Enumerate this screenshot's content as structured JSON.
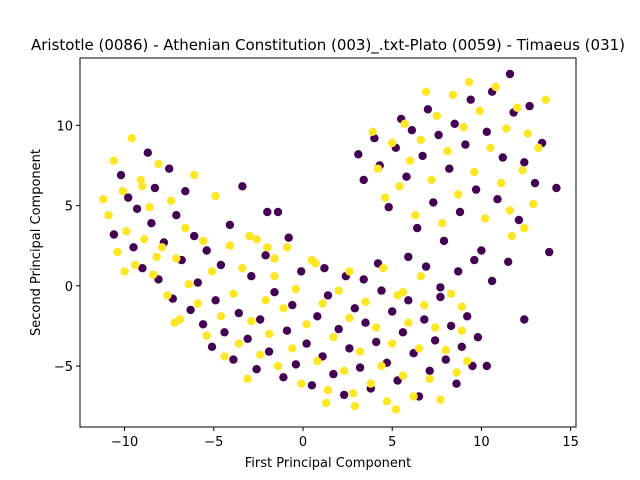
{
  "chart_data": {
    "type": "scatter",
    "title": "Aristotle (0086) - Athenian Constitution (003)_.txt-Plato (0059) - Timaeus (031)",
    "xlabel": "First Principal Component",
    "ylabel": "Second Principal Component",
    "xlim": [
      -12.5,
      15.3
    ],
    "ylim": [
      -8.8,
      14.2
    ],
    "xticks": [
      -10,
      -5,
      0,
      5,
      10,
      15
    ],
    "yticks": [
      -5,
      0,
      5,
      10
    ],
    "grid": false,
    "legend": "none",
    "colors": {
      "class_0": "#440154",
      "class_1": "#fde725"
    },
    "series": [
      {
        "points": [
          [
            -10.6,
            3.2
          ],
          [
            -10.2,
            6.9
          ],
          [
            -9.8,
            5.5
          ],
          [
            -9.5,
            2.4
          ],
          [
            -9.3,
            4.8
          ],
          [
            -9.0,
            1.1
          ],
          [
            -8.7,
            8.3
          ],
          [
            -8.5,
            3.9
          ],
          [
            -8.3,
            6.1
          ],
          [
            -8.1,
            0.4
          ],
          [
            -7.8,
            2.7
          ],
          [
            -7.5,
            7.3
          ],
          [
            -7.3,
            -0.8
          ],
          [
            -7.1,
            4.4
          ],
          [
            -6.8,
            1.6
          ],
          [
            -6.6,
            5.9
          ],
          [
            -6.3,
            -1.5
          ],
          [
            -6.1,
            3.1
          ],
          [
            -5.9,
            0.2
          ],
          [
            -5.6,
            -2.4
          ],
          [
            -5.4,
            2.2
          ],
          [
            -5.1,
            -3.8
          ],
          [
            -4.9,
            -0.9
          ],
          [
            -4.6,
            1.3
          ],
          [
            -4.4,
            -2.9
          ],
          [
            -4.1,
            3.8
          ],
          [
            -3.9,
            -4.6
          ],
          [
            -3.6,
            -1.7
          ],
          [
            -3.4,
            6.2
          ],
          [
            -3.1,
            -3.3
          ],
          [
            -2.9,
            0.6
          ],
          [
            -2.6,
            -5.2
          ],
          [
            -2.4,
            -2.1
          ],
          [
            -2.1,
            1.9
          ],
          [
            -1.9,
            -4.1
          ],
          [
            -1.6,
            -0.4
          ],
          [
            -1.4,
            4.6
          ],
          [
            -1.1,
            -5.7
          ],
          [
            -0.9,
            -2.8
          ],
          [
            -0.6,
            -1.2
          ],
          [
            -0.4,
            -4.9
          ],
          [
            -0.1,
            0.9
          ],
          [
            0.2,
            -3.6
          ],
          [
            0.5,
            -6.2
          ],
          [
            0.8,
            -1.9
          ],
          [
            1.1,
            -4.4
          ],
          [
            1.4,
            -0.6
          ],
          [
            1.7,
            -5.5
          ],
          [
            2.0,
            -2.7
          ],
          [
            2.3,
            -6.8
          ],
          [
            2.6,
            -3.9
          ],
          [
            2.9,
            -1.4
          ],
          [
            3.2,
            -5.1
          ],
          [
            3.5,
            -2.3
          ],
          [
            3.8,
            -6.4
          ],
          [
            4.1,
            -3.5
          ],
          [
            4.4,
            -0.3
          ],
          [
            4.7,
            -4.8
          ],
          [
            5.0,
            -1.6
          ],
          [
            5.3,
            -5.9
          ],
          [
            5.6,
            -2.9
          ],
          [
            5.9,
            -0.9
          ],
          [
            6.2,
            -4.2
          ],
          [
            6.5,
            -6.9
          ],
          [
            6.8,
            -2.1
          ],
          [
            7.1,
            -5.3
          ],
          [
            7.4,
            -3.4
          ],
          [
            7.7,
            -0.7
          ],
          [
            8.0,
            -4.6
          ],
          [
            8.3,
            -2.5
          ],
          [
            8.6,
            -6.1
          ],
          [
            8.9,
            -3.8
          ],
          [
            9.2,
            -1.9
          ],
          [
            9.5,
            -5.0
          ],
          [
            9.8,
            -3.2
          ],
          [
            10.3,
            -5.0
          ],
          [
            12.4,
            -2.1
          ],
          [
            3.1,
            8.2
          ],
          [
            3.4,
            6.6
          ],
          [
            4.0,
            9.2
          ],
          [
            4.3,
            7.5
          ],
          [
            4.8,
            4.9
          ],
          [
            5.2,
            8.6
          ],
          [
            5.5,
            10.4
          ],
          [
            5.8,
            6.8
          ],
          [
            6.1,
            9.7
          ],
          [
            6.4,
            3.6
          ],
          [
            6.7,
            8.1
          ],
          [
            7.0,
            11.0
          ],
          [
            7.3,
            5.2
          ],
          [
            7.6,
            9.4
          ],
          [
            7.9,
            2.8
          ],
          [
            8.2,
            7.3
          ],
          [
            8.5,
            10.1
          ],
          [
            8.8,
            4.6
          ],
          [
            9.1,
            8.8
          ],
          [
            9.4,
            11.6
          ],
          [
            9.7,
            6.0
          ],
          [
            10.0,
            2.2
          ],
          [
            10.3,
            9.6
          ],
          [
            10.6,
            12.1
          ],
          [
            10.9,
            5.4
          ],
          [
            11.2,
            8.0
          ],
          [
            11.5,
            1.5
          ],
          [
            11.8,
            10.8
          ],
          [
            12.1,
            4.1
          ],
          [
            12.4,
            7.7
          ],
          [
            12.7,
            11.2
          ],
          [
            13.0,
            6.4
          ],
          [
            13.4,
            8.9
          ],
          [
            13.8,
            2.1
          ],
          [
            14.2,
            6.1
          ],
          [
            11.6,
            13.2
          ],
          [
            1.2,
            1.1
          ],
          [
            2.4,
            0.6
          ],
          [
            3.4,
            0.4
          ],
          [
            4.2,
            1.4
          ],
          [
            5.9,
            1.8
          ],
          [
            6.9,
            1.2
          ],
          [
            9.6,
            1.6
          ],
          [
            10.6,
            0.3
          ],
          [
            7.7,
            -0.1
          ],
          [
            8.7,
            0.9
          ],
          [
            -2.0,
            4.6
          ],
          [
            -0.8,
            3.0
          ]
        ]
      },
      {
        "points": [
          [
            -11.2,
            5.4
          ],
          [
            -10.9,
            4.4
          ],
          [
            -10.6,
            7.8
          ],
          [
            -10.4,
            2.1
          ],
          [
            -10.1,
            5.9
          ],
          [
            -9.9,
            3.4
          ],
          [
            -9.6,
            9.2
          ],
          [
            -9.4,
            1.3
          ],
          [
            -9.1,
            6.6
          ],
          [
            -8.9,
            2.9
          ],
          [
            -8.6,
            4.9
          ],
          [
            -8.4,
            0.7
          ],
          [
            -8.1,
            7.6
          ],
          [
            -7.9,
            2.4
          ],
          [
            -7.6,
            -0.6
          ],
          [
            -7.4,
            5.3
          ],
          [
            -7.1,
            1.7
          ],
          [
            -6.9,
            -2.1
          ],
          [
            -6.6,
            3.6
          ],
          [
            -6.4,
            0.1
          ],
          [
            -6.1,
            6.9
          ],
          [
            -5.9,
            -1.1
          ],
          [
            -5.6,
            2.8
          ],
          [
            -5.4,
            -3.1
          ],
          [
            -5.1,
            0.9
          ],
          [
            -4.9,
            5.6
          ],
          [
            -4.6,
            -1.9
          ],
          [
            -4.4,
            -4.4
          ],
          [
            -4.1,
            2.5
          ],
          [
            -3.9,
            -0.5
          ],
          [
            -3.6,
            -3.6
          ],
          [
            -3.4,
            1.1
          ],
          [
            -3.1,
            -5.8
          ],
          [
            -2.9,
            -2.2
          ],
          [
            -2.6,
            2.9
          ],
          [
            -2.4,
            -4.3
          ],
          [
            -2.1,
            -0.9
          ],
          [
            -1.9,
            -3.0
          ],
          [
            -1.6,
            1.7
          ],
          [
            -1.4,
            -5.0
          ],
          [
            -1.1,
            -1.4
          ],
          [
            -0.9,
            2.4
          ],
          [
            -0.6,
            -3.9
          ],
          [
            -0.4,
            -0.2
          ],
          [
            -0.1,
            -6.1
          ],
          [
            0.2,
            -2.4
          ],
          [
            0.5,
            1.6
          ],
          [
            0.8,
            -4.7
          ],
          [
            1.1,
            -1.1
          ],
          [
            1.4,
            -6.5
          ],
          [
            1.7,
            -3.2
          ],
          [
            2.0,
            -0.3
          ],
          [
            2.3,
            -5.3
          ],
          [
            2.6,
            -2.0
          ],
          [
            2.9,
            -7.5
          ],
          [
            3.2,
            -4.1
          ],
          [
            3.5,
            -1.0
          ],
          [
            3.8,
            -6.1
          ],
          [
            4.1,
            -2.6
          ],
          [
            4.4,
            -5.0
          ],
          [
            4.7,
            -7.2
          ],
          [
            5.0,
            -3.6
          ],
          [
            5.3,
            -0.6
          ],
          [
            5.6,
            -5.6
          ],
          [
            5.9,
            -2.3
          ],
          [
            6.2,
            -6.9
          ],
          [
            6.5,
            -3.9
          ],
          [
            6.8,
            -1.2
          ],
          [
            7.1,
            -5.8
          ],
          [
            7.4,
            -2.6
          ],
          [
            7.7,
            -7.1
          ],
          [
            8.0,
            -4.0
          ],
          [
            8.3,
            -0.5
          ],
          [
            8.6,
            -5.4
          ],
          [
            8.9,
            -2.8
          ],
          [
            9.2,
            -4.7
          ],
          [
            1.3,
            -7.3
          ],
          [
            5.2,
            -7.7
          ],
          [
            3.9,
            9.6
          ],
          [
            4.2,
            7.3
          ],
          [
            4.6,
            5.5
          ],
          [
            5.0,
            8.9
          ],
          [
            5.4,
            6.2
          ],
          [
            5.7,
            10.1
          ],
          [
            6.0,
            7.8
          ],
          [
            6.3,
            4.4
          ],
          [
            6.6,
            9.1
          ],
          [
            6.9,
            12.1
          ],
          [
            7.2,
            6.6
          ],
          [
            7.5,
            10.6
          ],
          [
            7.8,
            3.9
          ],
          [
            8.1,
            8.4
          ],
          [
            8.4,
            11.9
          ],
          [
            8.7,
            5.7
          ],
          [
            9.0,
            9.9
          ],
          [
            9.3,
            12.7
          ],
          [
            9.6,
            7.1
          ],
          [
            9.9,
            10.9
          ],
          [
            10.2,
            4.2
          ],
          [
            10.5,
            8.6
          ],
          [
            10.8,
            12.4
          ],
          [
            11.1,
            6.4
          ],
          [
            11.4,
            9.8
          ],
          [
            11.7,
            3.1
          ],
          [
            12.0,
            11.1
          ],
          [
            12.3,
            7.2
          ],
          [
            12.6,
            9.5
          ],
          [
            12.9,
            5.1
          ],
          [
            13.2,
            8.6
          ],
          [
            13.6,
            11.6
          ],
          [
            12.4,
            3.6
          ],
          [
            11.6,
            4.7
          ],
          [
            -2.0,
            2.4
          ],
          [
            -1.6,
            0.6
          ],
          [
            0.7,
            1.4
          ],
          [
            2.6,
            0.9
          ],
          [
            4.5,
            1.1
          ],
          [
            5.6,
            -0.4
          ],
          [
            6.6,
            0.6
          ],
          [
            8.9,
            -1.3
          ],
          [
            -3.0,
            3.1
          ],
          [
            -9.0,
            6.2
          ],
          [
            -7.2,
            -2.3
          ],
          [
            -8.2,
            1.8
          ],
          [
            -10.0,
            0.9
          ],
          [
            2.8,
            -6.7
          ]
        ]
      }
    ]
  }
}
